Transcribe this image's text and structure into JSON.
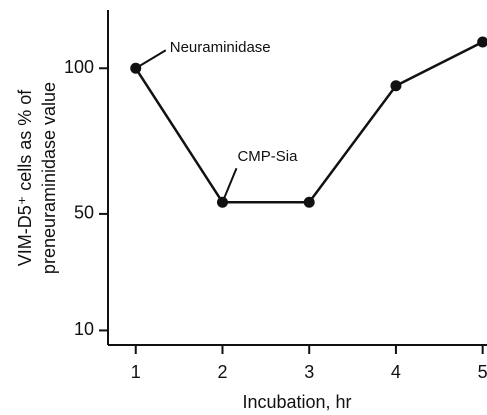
{
  "chart_data": {
    "type": "line",
    "x": [
      1,
      2,
      3,
      4,
      5
    ],
    "series": [
      {
        "color": "#111111",
        "values": [
          100,
          54,
          54,
          94,
          109
        ]
      }
    ],
    "xlim": [
      0.68,
      5.05
    ],
    "xticks": [
      1,
      2,
      3,
      4,
      5
    ],
    "ylim": [
      5,
      120
    ],
    "yticks": [
      10,
      50,
      100
    ],
    "xlabel": "Incubation, hr",
    "ylabel": [
      "VIM-D5⁺ cells as % of",
      "preneuraminidase value"
    ],
    "annotations": [
      "Neuraminidase",
      "CMP-Sia"
    ]
  }
}
